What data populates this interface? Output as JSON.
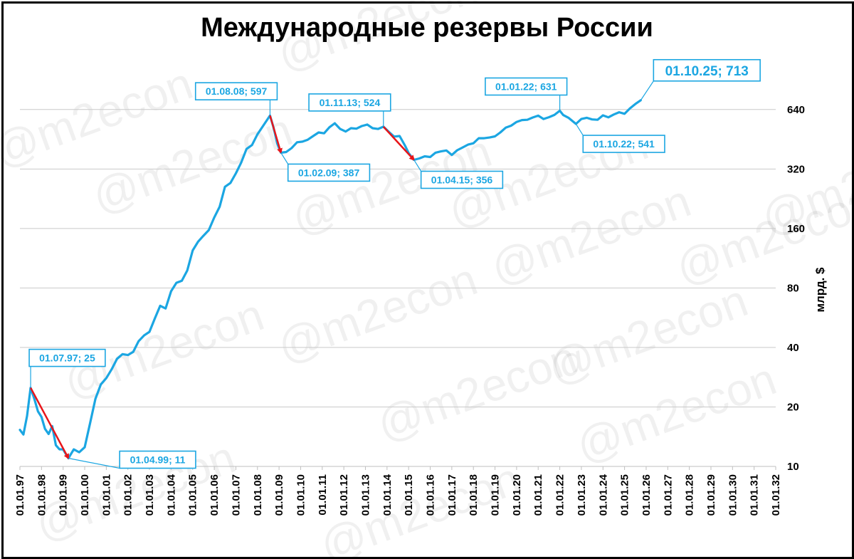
{
  "chart_data": {
    "type": "line",
    "title": "Международные резервы России",
    "ylabel": "млрд. $",
    "yscale": "log2",
    "ylim": [
      10,
      1000
    ],
    "yticks": [
      10,
      20,
      40,
      80,
      160,
      320,
      640
    ],
    "grid": true,
    "watermark": "@m2econ",
    "x_tick_labels": [
      "01.01.97",
      "01.01.98",
      "01.01.99",
      "01.01.00",
      "01.01.01",
      "01.01.02",
      "01.01.03",
      "01.01.04",
      "01.01.05",
      "01.01.06",
      "01.01.07",
      "01.01.08",
      "01.01.09",
      "01.01.10",
      "01.01.11",
      "01.01.12",
      "01.01.13",
      "01.01.14",
      "01.01.15",
      "01.01.16",
      "01.01.17",
      "01.01.18",
      "01.01.19",
      "01.01.20",
      "01.01.21",
      "01.01.22",
      "01.01.23",
      "01.01.24",
      "01.01.25",
      "01.01.26",
      "01.01.27",
      "01.01.28",
      "01.01.29",
      "01.01.30",
      "01.01.31",
      "01.01.32"
    ],
    "series": [
      {
        "color": "#1ba6e2",
        "points": [
          [
            "1997-01-01",
            15.3
          ],
          [
            "1997-03-01",
            14.5
          ],
          [
            "1997-05-01",
            18
          ],
          [
            "1997-07-01",
            25
          ],
          [
            "1997-09-01",
            22
          ],
          [
            "1997-11-01",
            19
          ],
          [
            "1998-01-01",
            17.8
          ],
          [
            "1998-03-01",
            15.5
          ],
          [
            "1998-05-01",
            14.6
          ],
          [
            "1998-07-01",
            16
          ],
          [
            "1998-09-01",
            12.8
          ],
          [
            "1998-11-01",
            12.2
          ],
          [
            "1999-01-01",
            12.2
          ],
          [
            "1999-04-01",
            11
          ],
          [
            "1999-07-01",
            12.2
          ],
          [
            "1999-10-01",
            11.8
          ],
          [
            "2000-01-01",
            12.5
          ],
          [
            "2000-04-01",
            16.5
          ],
          [
            "2000-07-01",
            22
          ],
          [
            "2000-10-01",
            26
          ],
          [
            "2001-01-01",
            28
          ],
          [
            "2001-04-01",
            31
          ],
          [
            "2001-07-01",
            35
          ],
          [
            "2001-10-01",
            37
          ],
          [
            "2002-01-01",
            36.6
          ],
          [
            "2002-04-01",
            38
          ],
          [
            "2002-07-01",
            43
          ],
          [
            "2002-10-01",
            46
          ],
          [
            "2003-01-01",
            48
          ],
          [
            "2003-04-01",
            56
          ],
          [
            "2003-07-01",
            65
          ],
          [
            "2003-10-01",
            63
          ],
          [
            "2004-01-01",
            77
          ],
          [
            "2004-04-01",
            85
          ],
          [
            "2004-07-01",
            87
          ],
          [
            "2004-10-01",
            98
          ],
          [
            "2005-01-01",
            124
          ],
          [
            "2005-04-01",
            137
          ],
          [
            "2005-07-01",
            147
          ],
          [
            "2005-10-01",
            157
          ],
          [
            "2006-01-01",
            182
          ],
          [
            "2006-04-01",
            206
          ],
          [
            "2006-07-01",
            260
          ],
          [
            "2006-10-01",
            272
          ],
          [
            "2007-01-01",
            304
          ],
          [
            "2007-04-01",
            345
          ],
          [
            "2007-07-01",
            404
          ],
          [
            "2007-10-01",
            423
          ],
          [
            "2008-01-01",
            479
          ],
          [
            "2008-04-01",
            526
          ],
          [
            "2008-08-01",
            597
          ],
          [
            "2008-10-01",
            516
          ],
          [
            "2008-12-01",
            430
          ],
          [
            "2009-02-01",
            387
          ],
          [
            "2009-05-01",
            390
          ],
          [
            "2009-08-01",
            408
          ],
          [
            "2009-11-01",
            437
          ],
          [
            "2010-02-01",
            440
          ],
          [
            "2010-05-01",
            450
          ],
          [
            "2010-08-01",
            470
          ],
          [
            "2010-11-01",
            490
          ],
          [
            "2011-02-01",
            485
          ],
          [
            "2011-05-01",
            520
          ],
          [
            "2011-08-01",
            545
          ],
          [
            "2011-11-01",
            510
          ],
          [
            "2012-02-01",
            495
          ],
          [
            "2012-05-01",
            515
          ],
          [
            "2012-08-01",
            512
          ],
          [
            "2012-11-01",
            528
          ],
          [
            "2013-02-01",
            537
          ],
          [
            "2013-05-01",
            515
          ],
          [
            "2013-08-01",
            510
          ],
          [
            "2013-11-01",
            524
          ],
          [
            "2014-02-01",
            493
          ],
          [
            "2014-05-01",
            467
          ],
          [
            "2014-08-01",
            470
          ],
          [
            "2014-11-01",
            420
          ],
          [
            "2015-01-01",
            385
          ],
          [
            "2015-04-01",
            356
          ],
          [
            "2015-07-01",
            362
          ],
          [
            "2015-10-01",
            371
          ],
          [
            "2016-01-01",
            368
          ],
          [
            "2016-04-01",
            387
          ],
          [
            "2016-07-01",
            393
          ],
          [
            "2016-10-01",
            397
          ],
          [
            "2017-01-01",
            377
          ],
          [
            "2017-04-01",
            398
          ],
          [
            "2017-07-01",
            411
          ],
          [
            "2017-10-01",
            425
          ],
          [
            "2018-01-01",
            432
          ],
          [
            "2018-04-01",
            458
          ],
          [
            "2018-07-01",
            458
          ],
          [
            "2018-10-01",
            462
          ],
          [
            "2019-01-01",
            468
          ],
          [
            "2019-04-01",
            490
          ],
          [
            "2019-07-01",
            518
          ],
          [
            "2019-10-01",
            530
          ],
          [
            "2020-01-01",
            554
          ],
          [
            "2020-04-01",
            566
          ],
          [
            "2020-07-01",
            568
          ],
          [
            "2020-10-01",
            583
          ],
          [
            "2021-01-01",
            596
          ],
          [
            "2021-04-01",
            573
          ],
          [
            "2021-07-01",
            585
          ],
          [
            "2021-10-01",
            601
          ],
          [
            "2022-01-01",
            631
          ],
          [
            "2022-03-01",
            600
          ],
          [
            "2022-06-01",
            580
          ],
          [
            "2022-10-01",
            541
          ],
          [
            "2023-01-01",
            573
          ],
          [
            "2023-04-01",
            581
          ],
          [
            "2023-07-01",
            570
          ],
          [
            "2023-10-01",
            568
          ],
          [
            "2024-01-01",
            598
          ],
          [
            "2024-04-01",
            584
          ],
          [
            "2024-07-01",
            604
          ],
          [
            "2024-10-01",
            620
          ],
          [
            "2025-01-01",
            609
          ],
          [
            "2025-04-01",
            648
          ],
          [
            "2025-07-01",
            682
          ],
          [
            "2025-10-01",
            713
          ]
        ]
      }
    ],
    "drops": [
      {
        "from": [
          "1997-07-01",
          25
        ],
        "to": [
          "1999-04-01",
          11
        ],
        "color": "#e8151a"
      },
      {
        "from": [
          "2008-08-01",
          597
        ],
        "to": [
          "2009-02-01",
          387
        ],
        "color": "#e8151a"
      },
      {
        "from": [
          "2013-11-01",
          524
        ],
        "to": [
          "2015-04-01",
          356
        ],
        "color": "#e8151a"
      }
    ],
    "annotations": [
      {
        "text": "01.07.97; 25",
        "date": "1997-07-01",
        "value": 25,
        "box": "above-right"
      },
      {
        "text": "01.04.99; 11",
        "date": "1999-04-01",
        "value": 11,
        "box": "right"
      },
      {
        "text": "01.08.08; 597",
        "date": "2008-08-01",
        "value": 597,
        "box": "above-left"
      },
      {
        "text": "01.02.09; 387",
        "date": "2009-02-01",
        "value": 387,
        "box": "below-right"
      },
      {
        "text": "01.11.13; 524",
        "date": "2013-11-01",
        "value": 524,
        "box": "above-left"
      },
      {
        "text": "01.04.15; 356",
        "date": "2015-04-01",
        "value": 356,
        "box": "below-right"
      },
      {
        "text": "01.01.22; 631",
        "date": "2022-01-01",
        "value": 631,
        "box": "above-left"
      },
      {
        "text": "01.10.22; 541",
        "date": "2022-10-01",
        "value": 541,
        "box": "below-right"
      },
      {
        "text": "01.10.25; 713",
        "date": "2025-10-01",
        "value": 713,
        "box": "above-right",
        "big": true
      }
    ]
  }
}
